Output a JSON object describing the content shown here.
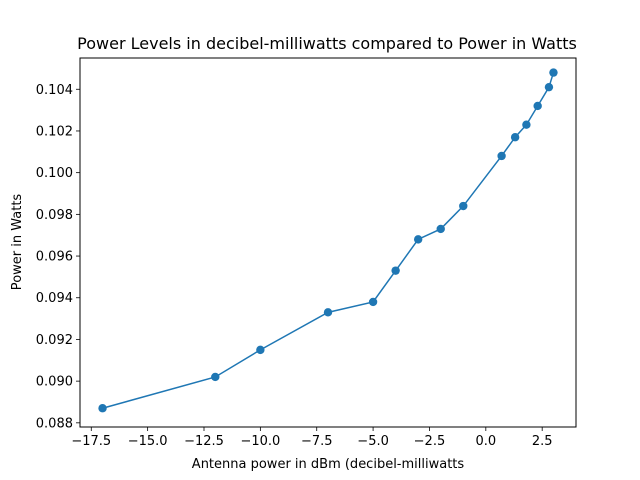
{
  "chart_data": {
    "type": "line",
    "title": "Power Levels in decibel-milliwatts compared to Power in Watts",
    "xlabel": "Antenna power in dBm (decibel-milliwatts",
    "ylabel": "Power in Watts",
    "xlim": [
      -18.0,
      4.0
    ],
    "ylim": [
      0.0878,
      0.1055
    ],
    "xticks": [
      -17.5,
      -15.0,
      -12.5,
      -10.0,
      -7.5,
      -5.0,
      -2.5,
      0.0,
      2.5
    ],
    "xtick_labels": [
      "−17.5",
      "−15.0",
      "−12.5",
      "−10.0",
      "−7.5",
      "−5.0",
      "−2.5",
      "0.0",
      "2.5"
    ],
    "yticks": [
      0.088,
      0.09,
      0.092,
      0.094,
      0.096,
      0.098,
      0.1,
      0.102,
      0.104
    ],
    "ytick_labels": [
      "0.088",
      "0.090",
      "0.092",
      "0.094",
      "0.096",
      "0.098",
      "0.100",
      "0.102",
      "0.104"
    ],
    "grid": false,
    "marker": "circle",
    "series": [
      {
        "color": "#1f77b4",
        "x": [
          -17,
          -12,
          -10,
          -7,
          -5,
          -4,
          -3,
          -2,
          -1,
          0.7,
          1.3,
          1.8,
          2.3,
          2.8,
          3.0
        ],
        "y": [
          0.0887,
          0.0902,
          0.0915,
          0.0933,
          0.0938,
          0.0953,
          0.0968,
          0.0973,
          0.0984,
          0.1008,
          0.1017,
          0.1023,
          0.1032,
          0.1041,
          0.1048
        ]
      }
    ]
  }
}
